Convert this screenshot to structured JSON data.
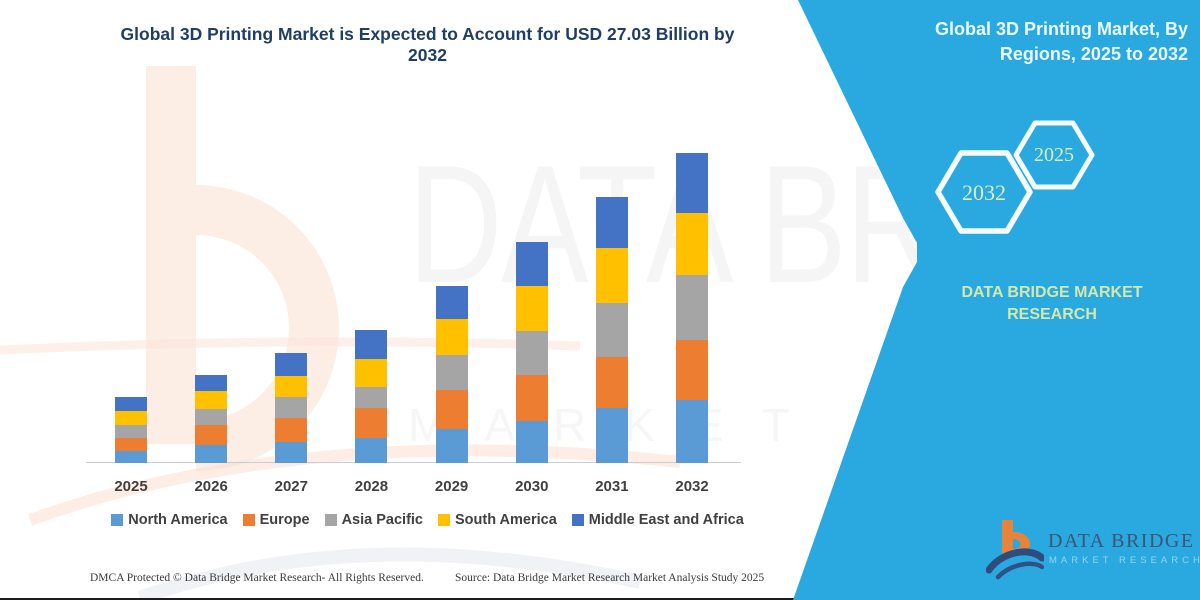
{
  "header": {
    "title_lines": [
      "Global 3D Printing Market is Expected to Account for USD 27.03 Billion by",
      "2032"
    ],
    "title_color": "#203E64"
  },
  "chart_data": {
    "type": "bar",
    "stacked": true,
    "unit": "USD Billion",
    "title": "Global 3D Printing Market is Expected to Account for USD 27.03 Billion by 2032",
    "categories": [
      "2025",
      "2026",
      "2027",
      "2028",
      "2029",
      "2030",
      "2031",
      "2032"
    ],
    "series": [
      {
        "name": "North America",
        "color": "#5B9BD5",
        "values": [
          1.05,
          1.55,
          1.85,
          2.22,
          2.96,
          3.68,
          4.8,
          5.47
        ]
      },
      {
        "name": "Europe",
        "color": "#ED7D31",
        "values": [
          1.17,
          1.75,
          2.1,
          2.6,
          3.36,
          4.0,
          4.43,
          5.29
        ]
      },
      {
        "name": "Asia Pacific",
        "color": "#A5A5A5",
        "values": [
          1.05,
          1.45,
          1.82,
          1.79,
          3.1,
          3.82,
          4.74,
          5.61
        ]
      },
      {
        "name": "South America",
        "color": "#FFC000",
        "values": [
          1.3,
          1.57,
          1.85,
          2.45,
          3.1,
          3.92,
          4.72,
          5.43
        ]
      },
      {
        "name": "Middle East and Africa",
        "color": "#4472C4",
        "values": [
          1.21,
          1.35,
          1.96,
          2.53,
          2.9,
          3.86,
          4.51,
          5.23
        ]
      }
    ],
    "totals": [
      5.78,
      7.67,
      9.58,
      11.59,
      15.42,
      19.28,
      23.2,
      27.03
    ],
    "xlabel": "",
    "ylabel": "",
    "y_axis_shown": false,
    "grid": false,
    "legend_position": "bottom"
  },
  "side_panel": {
    "bg_color": "#29A9E0",
    "title_lines": [
      "Global 3D Printing Market, By",
      "Regions, 2025 to 2032"
    ],
    "hexagon_labels": [
      "2032",
      "2025"
    ],
    "hexagon_text_color": "#D9EDB8",
    "brand_caption": "DATA BRIDGE MARKET RESEARCH",
    "brand_caption_color": "#D3E8AC"
  },
  "footer": {
    "dmca": "DMCA Protected © Data Bridge Market Research-  All Rights Reserved.",
    "source": "Source: Data Bridge Market Research  Market Analysis Study 2025"
  },
  "logo": {
    "name": "DATA BRIDGE",
    "subtitle": "MARKET RESEARCH",
    "orange": "#E8833A",
    "navy": "#2F4C7E"
  },
  "watermark": {
    "line1": "DATA BRIDGE",
    "line2": "MARKET RESEARCH"
  }
}
